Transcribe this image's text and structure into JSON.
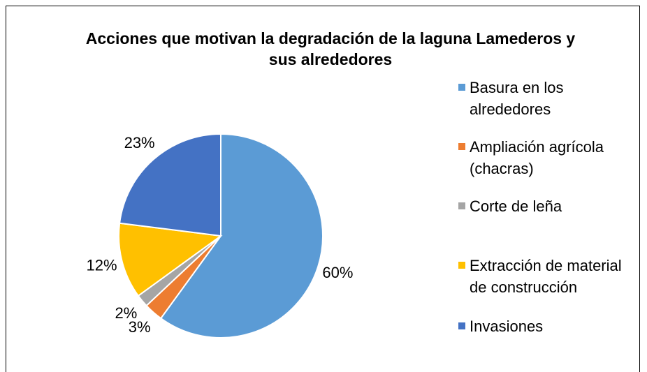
{
  "chart_data": {
    "type": "pie",
    "title": "Acciones que motivan la degradación de la laguna Lamederos y sus alrededores",
    "categories": [
      "Basura en los alrededores",
      "Ampliación agrícola (chacras)",
      "Corte de leña",
      "Extracción de material de construcción",
      "Invasiones"
    ],
    "values": [
      60,
      3,
      2,
      12,
      23
    ],
    "value_labels": [
      "60%",
      "3%",
      "2%",
      "12%",
      "23%"
    ],
    "colors": [
      "#5b9bd5",
      "#ed7d31",
      "#a5a5a5",
      "#ffc000",
      "#4472c4"
    ],
    "legend": "right"
  }
}
